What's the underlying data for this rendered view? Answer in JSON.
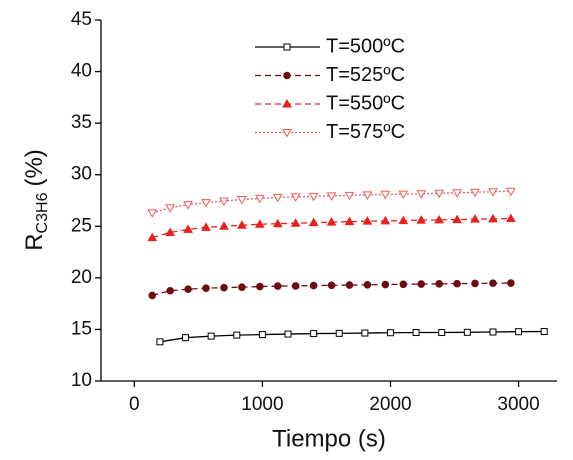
{
  "chart_data": {
    "type": "line",
    "xlabel": "Tiempo (s)",
    "ylabel": "R",
    "ylabel_sub": "C3H6",
    "ylabel_unit": "(%)",
    "xlim": [
      -260,
      3300
    ],
    "ylim": [
      10,
      45
    ],
    "xticks": [
      0,
      1000,
      2000,
      3000
    ],
    "yticks": [
      10,
      15,
      20,
      25,
      30,
      35,
      40,
      45
    ],
    "series": [
      {
        "name": "T=500ºC",
        "color": "#000000",
        "dash": "solid",
        "marker": "square-open",
        "x": [
          200,
          400,
          600,
          800,
          1000,
          1200,
          1400,
          1600,
          1800,
          2000,
          2200,
          2400,
          2600,
          2800,
          3000,
          3200
        ],
        "values": [
          13.8,
          14.2,
          14.35,
          14.45,
          14.5,
          14.55,
          14.6,
          14.62,
          14.65,
          14.68,
          14.7,
          14.7,
          14.72,
          14.75,
          14.78,
          14.8
        ]
      },
      {
        "name": "T=525ºC",
        "color": "#6b0d12",
        "dash": "dash",
        "marker": "circle",
        "x": [
          140,
          280,
          420,
          560,
          700,
          840,
          980,
          1120,
          1260,
          1400,
          1540,
          1680,
          1820,
          1960,
          2100,
          2240,
          2380,
          2520,
          2660,
          2800,
          2940
        ],
        "values": [
          18.3,
          18.75,
          18.9,
          19.0,
          19.05,
          19.1,
          19.15,
          19.2,
          19.22,
          19.25,
          19.28,
          19.3,
          19.33,
          19.35,
          19.38,
          19.4,
          19.42,
          19.44,
          19.46,
          19.48,
          19.5
        ]
      },
      {
        "name": "T=550ºC",
        "color": "#e8201e",
        "dash": "dash",
        "marker": "triangle",
        "x": [
          140,
          280,
          420,
          560,
          700,
          840,
          980,
          1120,
          1260,
          1400,
          1540,
          1680,
          1820,
          1960,
          2100,
          2240,
          2380,
          2520,
          2660,
          2800,
          2940
        ],
        "values": [
          23.9,
          24.4,
          24.7,
          24.9,
          25.0,
          25.1,
          25.2,
          25.25,
          25.3,
          25.35,
          25.4,
          25.45,
          25.5,
          25.52,
          25.55,
          25.6,
          25.62,
          25.65,
          25.7,
          25.72,
          25.75
        ]
      },
      {
        "name": "T=575ºC",
        "color": "#f05a5a",
        "dash": "dot",
        "marker": "triangle-down-open",
        "x": [
          140,
          280,
          420,
          560,
          700,
          840,
          980,
          1120,
          1260,
          1400,
          1540,
          1680,
          1820,
          1960,
          2100,
          2240,
          2380,
          2520,
          2660,
          2800,
          2940
        ],
        "values": [
          26.3,
          26.8,
          27.1,
          27.3,
          27.45,
          27.6,
          27.7,
          27.8,
          27.85,
          27.9,
          27.95,
          28.0,
          28.05,
          28.1,
          28.12,
          28.15,
          28.2,
          28.25,
          28.3,
          28.35,
          28.4
        ]
      }
    ]
  }
}
